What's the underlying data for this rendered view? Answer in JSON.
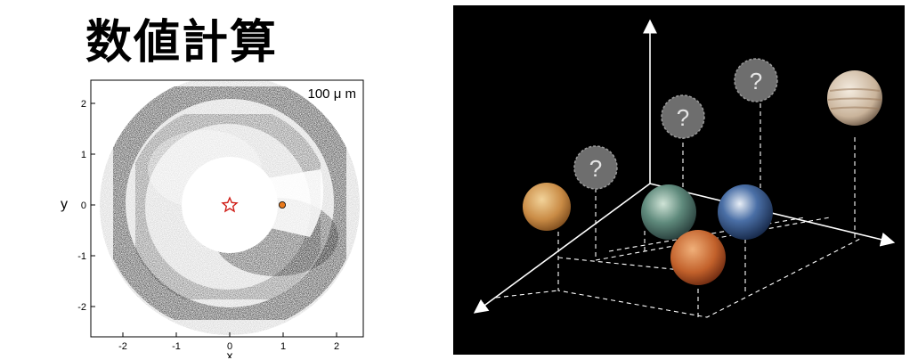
{
  "title": "数値計算",
  "simulation_plot": {
    "wavelength_label": "100 μ m",
    "xlabel": "x",
    "ylabel": "y",
    "x_ticks": [
      "-2",
      "-1",
      "0",
      "1",
      "2"
    ],
    "y_ticks": [
      "2",
      "1",
      "0",
      "-1",
      "-2"
    ],
    "xlim": [
      -2.5,
      2.5
    ],
    "ylim": [
      -2.5,
      2.5
    ],
    "star_color": "#d0201a",
    "planet_color": "#e8791c"
  },
  "planet_diagram": {
    "background": "#000000",
    "unknown_marker": "?",
    "planets": [
      "venus-planet",
      "earth-like-planet",
      "earth-planet",
      "mars-planet",
      "jupiter-planet"
    ]
  }
}
